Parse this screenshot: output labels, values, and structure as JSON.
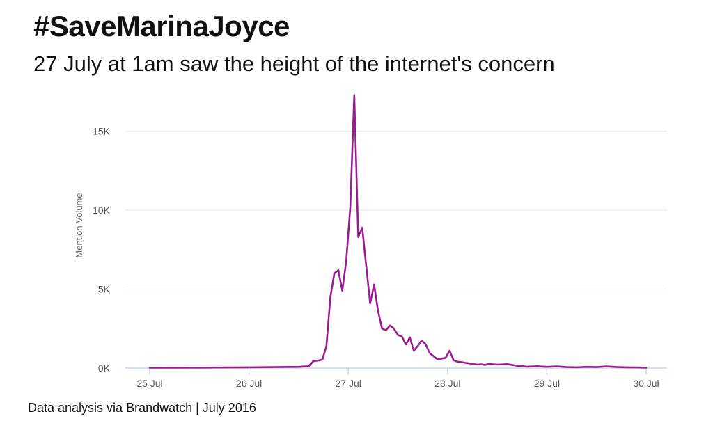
{
  "header": {
    "title": "#SaveMarinaJoyce",
    "subtitle": "27 July at 1am saw the height of the internet's concern"
  },
  "footer": {
    "text": "Data analysis via Brandwatch | July 2016"
  },
  "colors": {
    "series": "#9b1b93",
    "grid": "#e6e6e6",
    "baseline": "#c9d6ea",
    "text": "#111111"
  },
  "chart_data": {
    "type": "line",
    "title": "#SaveMarinaJoyce",
    "subtitle": "27 July at 1am saw the height of the internet's concern",
    "xlabel": "",
    "ylabel": "Mention Volume",
    "x_unit": "days since 25 Jul 00:00",
    "xlim": [
      0,
      5
    ],
    "ylim": [
      0,
      17500
    ],
    "x_ticks": [
      {
        "x": 0,
        "label": "25 Jul"
      },
      {
        "x": 1,
        "label": "26 Jul"
      },
      {
        "x": 2,
        "label": "27 Jul"
      },
      {
        "x": 3,
        "label": "28 Jul"
      },
      {
        "x": 4,
        "label": "29 Jul"
      },
      {
        "x": 5,
        "label": "30 Jul"
      }
    ],
    "y_ticks": [
      {
        "y": 0,
        "label": "0K"
      },
      {
        "y": 5000,
        "label": "5K"
      },
      {
        "y": 10000,
        "label": "10K"
      },
      {
        "y": 15000,
        "label": "15K"
      }
    ],
    "grid": true,
    "legend": "none",
    "series": [
      {
        "x": [
          0,
          0.5,
          1,
          1.25,
          1.5,
          1.6,
          1.65,
          1.7,
          1.74,
          1.78,
          1.82,
          1.86,
          1.9,
          1.94,
          1.98,
          2.02,
          2.06,
          2.1,
          2.14,
          2.18,
          2.22,
          2.26,
          2.3,
          2.34,
          2.38,
          2.42,
          2.46,
          2.5,
          2.54,
          2.58,
          2.62,
          2.66,
          2.7,
          2.74,
          2.78,
          2.82,
          2.86,
          2.9,
          2.94,
          2.98,
          3.02,
          3.06,
          3.1,
          3.14,
          3.18,
          3.22,
          3.26,
          3.3,
          3.34,
          3.38,
          3.42,
          3.46,
          3.5,
          3.6,
          3.7,
          3.8,
          3.9,
          4,
          4.1,
          4.2,
          4.3,
          4.4,
          4.5,
          4.6,
          4.7,
          4.8,
          4.9,
          5
        ],
        "y": [
          20,
          30,
          50,
          60,
          80,
          120,
          450,
          480,
          550,
          1400,
          4500,
          6000,
          6200,
          4900,
          6800,
          10200,
          17300,
          8300,
          8900,
          6500,
          4100,
          5300,
          3600,
          2500,
          2400,
          2700,
          2500,
          2100,
          2000,
          1500,
          1950,
          1100,
          1400,
          1750,
          1500,
          950,
          750,
          550,
          600,
          650,
          1100,
          500,
          400,
          380,
          330,
          300,
          260,
          220,
          240,
          200,
          280,
          240,
          220,
          250,
          150,
          90,
          120,
          80,
          110,
          60,
          50,
          80,
          60,
          110,
          70,
          50,
          40,
          30
        ]
      }
    ]
  }
}
